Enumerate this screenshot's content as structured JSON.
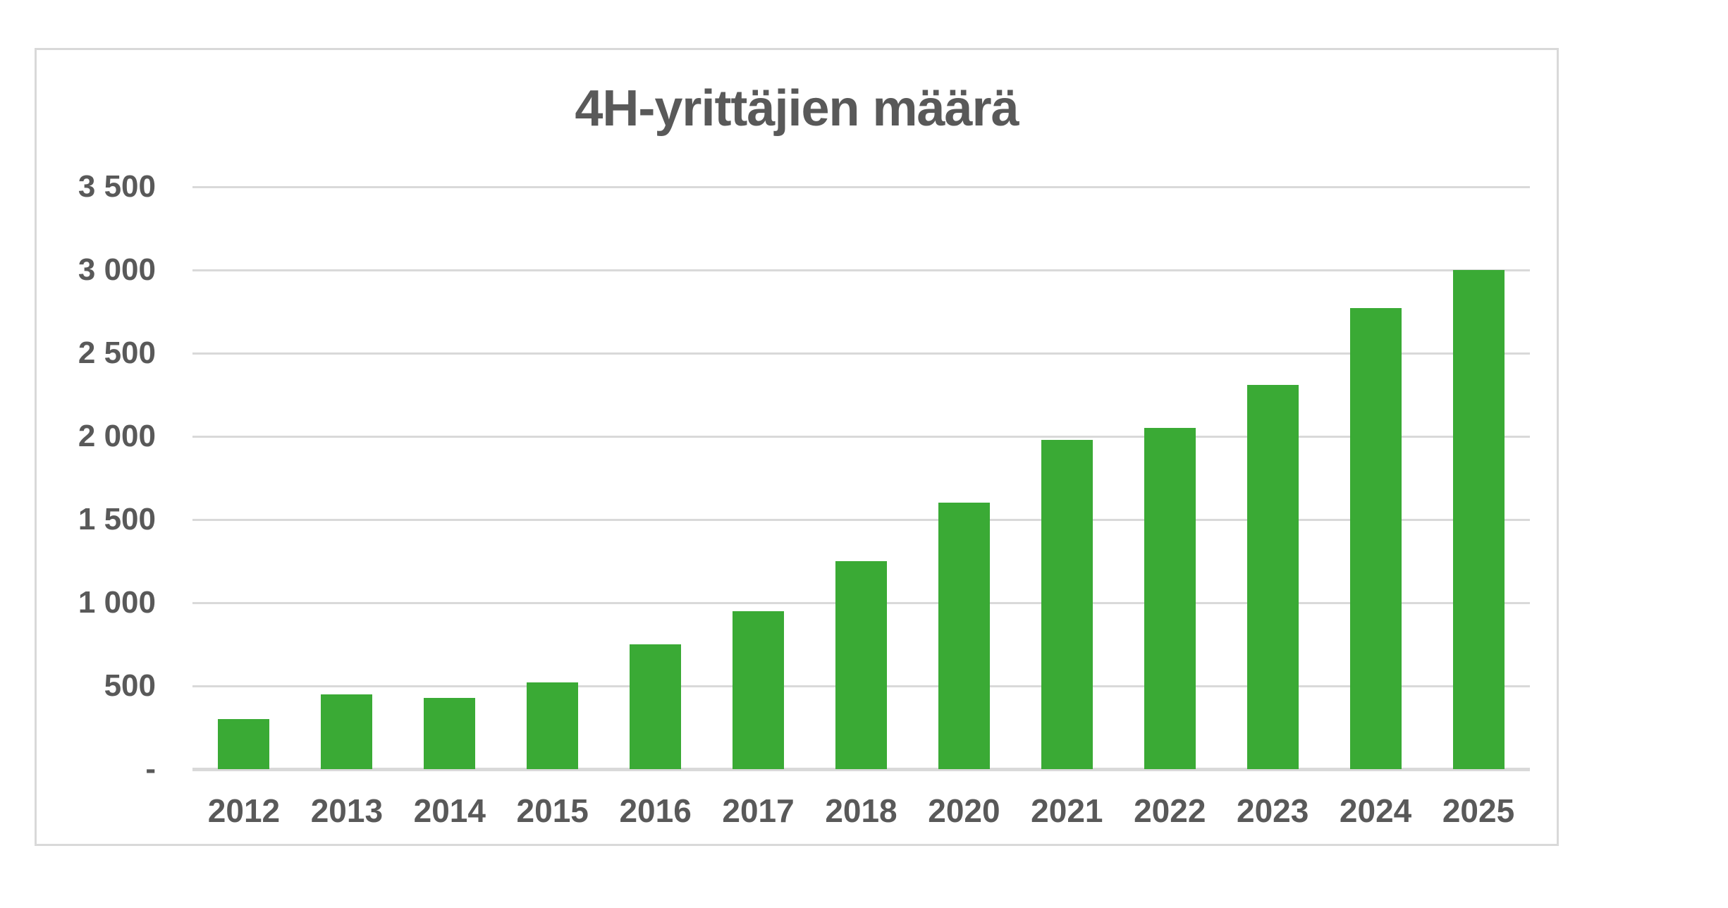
{
  "chart_data": {
    "type": "bar",
    "title": "4H-yrittäjien määrä",
    "categories": [
      "2012",
      "2013",
      "2014",
      "2015",
      "2016",
      "2017",
      "2018",
      "2020",
      "2021",
      "2022",
      "2023",
      "2024",
      "2025"
    ],
    "values": [
      300,
      450,
      430,
      520,
      750,
      950,
      1250,
      1600,
      1980,
      2050,
      2310,
      2770,
      3000
    ],
    "xlabel": "",
    "ylabel": "",
    "ylim": [
      0,
      3500
    ],
    "grid": true,
    "legend": false,
    "yticks": [
      {
        "value": 3500,
        "label": "3 500"
      },
      {
        "value": 3000,
        "label": "3 000"
      },
      {
        "value": 2500,
        "label": "2 500"
      },
      {
        "value": 2000,
        "label": "2 000"
      },
      {
        "value": 1500,
        "label": "1 500"
      },
      {
        "value": 1000,
        "label": "1 000"
      },
      {
        "value": 500,
        "label": "500"
      },
      {
        "value": 0,
        "label": "-"
      }
    ],
    "colors": {
      "bar": "#3aaa35",
      "text": "#595959",
      "grid": "#d9d9d9",
      "border": "#d9d9d9",
      "background": "#ffffff"
    }
  }
}
